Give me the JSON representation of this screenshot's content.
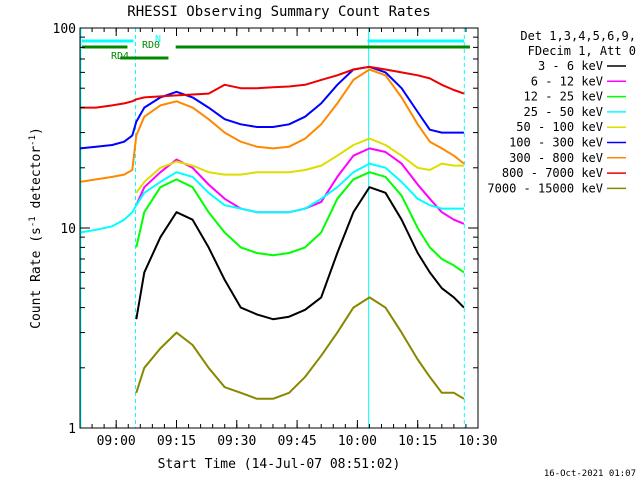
{
  "chart_data": {
    "type": "line",
    "title": "RHESSI Observing Summary Count Rates",
    "xlabel": "Start Time (14-Jul-07 08:51:02)",
    "ylabel_main": "Count Rate (s",
    "ylabel_sup1": "-1",
    "ylabel_mid": " detector",
    "ylabel_sup2": "-1",
    "ylabel_end": ")",
    "yscale": "log",
    "ylim": [
      1,
      100
    ],
    "xlim_min": [
      0,
      99
    ],
    "y_ticks": [
      {
        "value": 1,
        "label": "1"
      },
      {
        "value": 10,
        "label": "10"
      },
      {
        "value": 100,
        "label": "100"
      }
    ],
    "x_ticks": [
      {
        "t": 9,
        "label": "09:00"
      },
      {
        "t": 24,
        "label": "09:15"
      },
      {
        "t": 39,
        "label": "09:30"
      },
      {
        "t": 54,
        "label": "09:45"
      },
      {
        "t": 69,
        "label": "10:00"
      },
      {
        "t": 84,
        "label": "10:15"
      },
      {
        "t": 99,
        "label": "10:30"
      }
    ],
    "legend_header": [
      "Det 1,3,4,5,6,9,",
      "FDecim 1, Att 0"
    ],
    "series": [
      {
        "name": "3 - 6 keV",
        "color": "#000000",
        "x": [
          0,
          13,
          14,
          16,
          20,
          24,
          28,
          32,
          36,
          40,
          44,
          48,
          52,
          56,
          60,
          64,
          68,
          72,
          76,
          80,
          84,
          87,
          90,
          93,
          95.5
        ],
        "y": [
          null,
          null,
          3.5,
          6,
          9,
          12,
          11,
          8,
          5.5,
          4,
          3.7,
          3.5,
          3.6,
          3.9,
          4.5,
          7.5,
          12,
          16,
          15,
          11,
          7.5,
          6,
          5,
          4.5,
          4
        ]
      },
      {
        "name": "6 - 12 keV",
        "color": "#ff00ff",
        "x": [
          0,
          13,
          14,
          16,
          20,
          24,
          28,
          32,
          36,
          40,
          44,
          48,
          52,
          56,
          60,
          64,
          68,
          72,
          76,
          80,
          84,
          87,
          90,
          93,
          95.5
        ],
        "y": [
          null,
          null,
          13,
          16,
          19,
          22,
          20,
          16.5,
          14,
          12.5,
          12,
          12,
          12,
          12.5,
          13.5,
          18,
          23,
          25,
          24,
          21,
          16.5,
          14,
          12,
          11,
          10.5
        ]
      },
      {
        "name": "12 - 25 keV",
        "color": "#00ff00",
        "x": [
          0,
          13,
          14,
          16,
          20,
          24,
          28,
          32,
          36,
          40,
          44,
          48,
          52,
          56,
          60,
          64,
          68,
          72,
          76,
          80,
          84,
          87,
          90,
          93,
          95.5
        ],
        "y": [
          null,
          null,
          8,
          12,
          16,
          17.5,
          16,
          12,
          9.5,
          8,
          7.5,
          7.3,
          7.5,
          8,
          9.5,
          14,
          17.5,
          19,
          18,
          14.5,
          10,
          8,
          7,
          6.5,
          6
        ]
      },
      {
        "name": "25 - 50 keV",
        "color": "#00ffff",
        "x": [
          0,
          4,
          8,
          11,
          13,
          14,
          16,
          20,
          24,
          28,
          32,
          36,
          40,
          44,
          48,
          52,
          56,
          60,
          64,
          68,
          72,
          76,
          80,
          84,
          87,
          90,
          93,
          95.5
        ],
        "y": [
          9.5,
          9.8,
          10.2,
          11,
          12,
          13,
          15,
          17,
          19,
          18,
          15,
          13,
          12.5,
          12,
          12,
          12,
          12.5,
          14,
          16,
          19,
          21,
          20,
          17,
          14,
          13,
          12.5,
          12.5,
          12.5
        ]
      },
      {
        "name": "50 - 100 keV",
        "color": "#dddd00",
        "x": [
          0,
          13,
          14,
          16,
          20,
          24,
          28,
          32,
          36,
          40,
          44,
          48,
          52,
          56,
          60,
          64,
          68,
          72,
          76,
          80,
          84,
          87,
          90,
          93,
          95.5
        ],
        "y": [
          null,
          null,
          15,
          17,
          20,
          21.5,
          20.5,
          19,
          18.5,
          18.5,
          19,
          19,
          19,
          19.5,
          20.5,
          23,
          26,
          28,
          26,
          23,
          20,
          19.5,
          21,
          20.5,
          20.5
        ]
      },
      {
        "name": "100 - 300 keV",
        "color": "#0000ff",
        "x": [
          0,
          4,
          8,
          11,
          13,
          14,
          16,
          20,
          24,
          28,
          32,
          36,
          40,
          44,
          48,
          52,
          56,
          60,
          64,
          68,
          72,
          76,
          80,
          84,
          87,
          90,
          93,
          95.5
        ],
        "y": [
          25,
          25.5,
          26,
          27,
          29,
          34,
          40,
          45,
          48,
          45,
          40,
          35,
          33,
          32,
          32,
          33,
          36,
          42,
          52,
          62,
          64,
          60,
          50,
          38,
          31,
          30,
          30,
          30
        ]
      },
      {
        "name": "300 - 800 keV",
        "color": "#ff8800",
        "x": [
          0,
          4,
          8,
          11,
          13,
          14,
          16,
          20,
          24,
          28,
          32,
          36,
          40,
          44,
          48,
          52,
          56,
          60,
          64,
          68,
          72,
          76,
          80,
          84,
          87,
          90,
          93,
          95.5
        ],
        "y": [
          17,
          17.5,
          18,
          18.5,
          19.5,
          29,
          36,
          41,
          43,
          40,
          35,
          30,
          27,
          25.5,
          25,
          25.5,
          28,
          33,
          42,
          55,
          62,
          58,
          45,
          33,
          27,
          25,
          23,
          21
        ]
      },
      {
        "name": "800 - 7000 keV",
        "color": "#ee0000",
        "x": [
          0,
          4,
          8,
          11,
          13,
          14,
          16,
          20,
          24,
          28,
          32,
          36,
          40,
          44,
          48,
          52,
          56,
          60,
          64,
          68,
          72,
          76,
          80,
          84,
          87,
          90,
          93,
          95.5
        ],
        "y": [
          40,
          40,
          41,
          42,
          43,
          44,
          45,
          45.5,
          46,
          46.5,
          47,
          52,
          50,
          50,
          50.5,
          51,
          52,
          55,
          58,
          62,
          64,
          62,
          60,
          58,
          56,
          52,
          49,
          47
        ]
      },
      {
        "name": "7000 - 15000 keV",
        "color": "#888800",
        "x": [
          0,
          13,
          14,
          16,
          20,
          24,
          28,
          32,
          36,
          40,
          44,
          48,
          52,
          56,
          60,
          64,
          68,
          72,
          76,
          80,
          84,
          87,
          90,
          93,
          95.5
        ],
        "y": [
          null,
          null,
          1.5,
          2,
          2.5,
          3,
          2.6,
          2,
          1.6,
          1.5,
          1.4,
          1.4,
          1.5,
          1.8,
          2.3,
          3,
          4,
          4.5,
          4,
          3,
          2.2,
          1.8,
          1.5,
          1.5,
          1.4
        ]
      }
    ],
    "flag_bars": [
      {
        "label": "N",
        "color": "#00ffff",
        "segments": [
          [
            0.5,
            13.3
          ],
          [
            71.5,
            95.5
          ]
        ]
      },
      {
        "label": "RD0",
        "color": "#008800",
        "segments": [
          [
            0.5,
            11.8
          ],
          [
            23.8,
            97
          ]
        ]
      },
      {
        "label": "RD4",
        "color": "#008800",
        "segments": [
          [
            10,
            22
          ]
        ]
      }
    ],
    "vertical_markers": [
      {
        "t": 0.2,
        "color": "#00ffff",
        "style": "solid"
      },
      {
        "t": 13.8,
        "color": "#00ffff",
        "style": "dashed"
      },
      {
        "t": 71.8,
        "color": "#00ffff",
        "style": "solid"
      },
      {
        "t": 95.6,
        "color": "#00ffff",
        "style": "dashed"
      }
    ],
    "footer_date": "16-Oct-2021 01:07",
    "colors": {
      "background": "#ffffff",
      "axes": "#000000"
    }
  }
}
